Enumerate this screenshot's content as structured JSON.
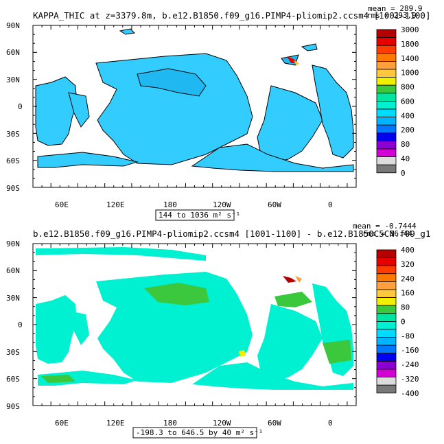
{
  "panels": [
    {
      "title": "KAPPA_THIC at z=3379.8m, b.e12.B1850.f09_g16.PIMP4-pliomip2.ccsm4 [1001-1100]",
      "mean_label": "mean = 289.9",
      "rms_label": "rms = 293.9",
      "range_label": "144 to 1036 m² s⁻¹",
      "colorbar": {
        "labels": [
          "3000",
          "1800",
          "1400",
          "1000",
          "800",
          "600",
          "400",
          "200",
          "80",
          "40",
          "0"
        ],
        "colors": [
          "#b40000",
          "#e60000",
          "#ff3c00",
          "#ff7800",
          "#ffa03c",
          "#ffc83c",
          "#f0f000",
          "#3cc83c",
          "#00e6a0",
          "#00f0d2",
          "#00dcff",
          "#00b4ff",
          "#0078ff",
          "#0000f0",
          "#8c00d2",
          "#d200d2",
          "#dcdcdc",
          "#787878"
        ]
      },
      "map_colors": {
        "ocean": "#33ccff",
        "ocean_dark": "#1fb8f0"
      }
    },
    {
      "title": "b.e12.B1850.f09_g16.PIMP4-pliomip2.ccsm4 [1001-1100] - b.e12.B1850C5CN.f09_g1",
      "mean_label": "mean = -0.7444",
      "rms_label": "rms = 36.44",
      "range_label": "-198.3 to 646.5 by 40 m² s⁻¹",
      "colorbar": {
        "labels": [
          "400",
          "320",
          "240",
          "160",
          "80",
          "0",
          "-80",
          "-160",
          "-240",
          "-320",
          "-400"
        ],
        "colors": [
          "#b40000",
          "#e60000",
          "#ff3c00",
          "#ff7800",
          "#ffa03c",
          "#ffc83c",
          "#f0f000",
          "#3cc83c",
          "#00e6a0",
          "#00f0d2",
          "#00dcff",
          "#00b4ff",
          "#0078ff",
          "#0000f0",
          "#8c00d2",
          "#d200d2",
          "#dcdcdc",
          "#787878"
        ]
      },
      "map_colors": {
        "ocean": "#00f0d2",
        "ocean_dark": "#3cc83c"
      }
    }
  ],
  "axes": {
    "lat_labels": [
      "90N",
      "60N",
      "30N",
      "0",
      "30S",
      "60S",
      "90S"
    ],
    "lon_labels": [
      "60E",
      "120E",
      "180",
      "120W",
      "60W",
      "0"
    ]
  }
}
